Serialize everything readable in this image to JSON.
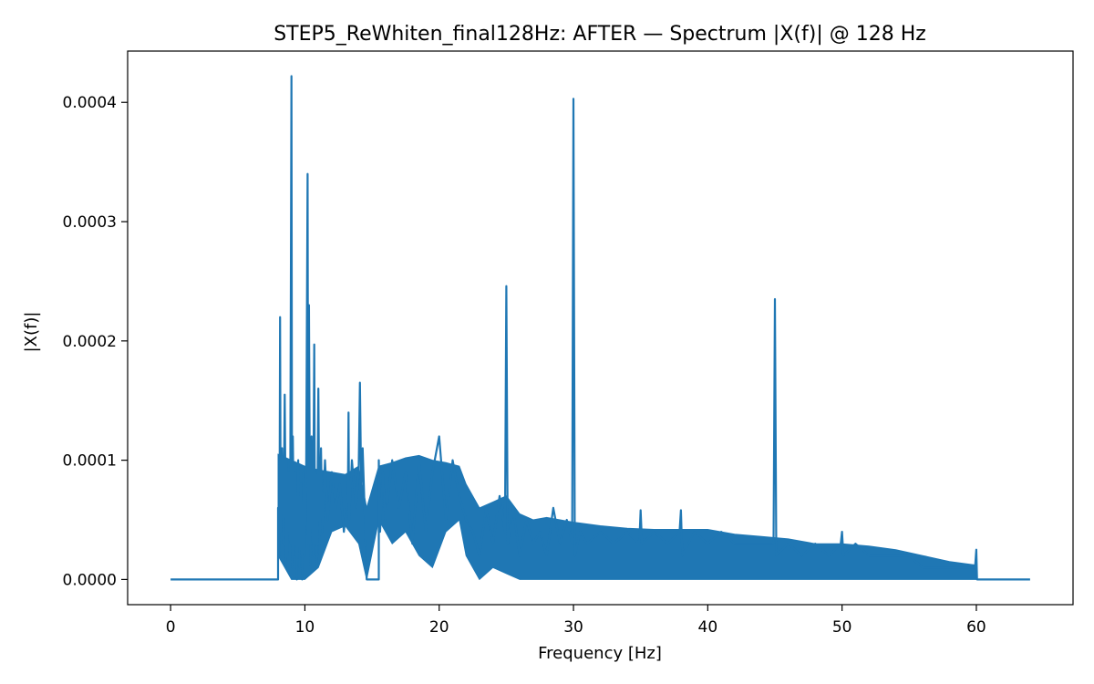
{
  "chart_data": {
    "type": "line",
    "title": "STEP5_ReWhiten_final128Hz: AFTER — Spectrum |X(f)| @ 128 Hz",
    "xlabel": "Frequency [Hz]",
    "ylabel": "|X(f)|",
    "xlim": [
      -3.2,
      67.2
    ],
    "ylim": [
      -2.11e-05,
      0.000443
    ],
    "xticks": [
      0,
      10,
      20,
      30,
      40,
      50,
      60
    ],
    "xtick_labels": [
      "0",
      "10",
      "20",
      "30",
      "40",
      "50",
      "60"
    ],
    "yticks": [
      0,
      0.0001,
      0.0002,
      0.0003,
      0.0004
    ],
    "ytick_labels": [
      "0.0000",
      "0.0001",
      "0.0002",
      "0.0003",
      "0.0004"
    ],
    "grid": false,
    "series": [
      {
        "color": "#1f77b4",
        "x": [
          0,
          8.0,
          8.0,
          8.1,
          8.15,
          8.2,
          8.3,
          8.4,
          8.5,
          8.6,
          8.65,
          8.7,
          8.8,
          8.9,
          9.0,
          9.05,
          9.1,
          9.2,
          9.3,
          9.4,
          9.5,
          9.6,
          9.7,
          9.8,
          9.9,
          10.0,
          10.1,
          10.2,
          10.25,
          10.3,
          10.4,
          10.5,
          10.6,
          10.7,
          10.75,
          10.8,
          10.9,
          11.0,
          11.1,
          11.2,
          11.3,
          11.5,
          11.7,
          12.0,
          12.3,
          12.6,
          12.9,
          13.2,
          13.25,
          13.3,
          13.5,
          13.8,
          14.0,
          14.1,
          14.2,
          14.3,
          14.5,
          14.6,
          14.7,
          15.0,
          15.4,
          15.5,
          15.5,
          15.6,
          15.8,
          16.0,
          16.5,
          17.0,
          17.5,
          18.0,
          18.5,
          19.0,
          19.5,
          20.0,
          20.5,
          21.0,
          21.5,
          22.0,
          22.5,
          23.0,
          23.5,
          24.0,
          24.5,
          24.9,
          25.0,
          25.1,
          25.5,
          26.0,
          26.5,
          27.0,
          27.5,
          28.0,
          28.5,
          29.0,
          29.5,
          29.9,
          30.0,
          30.1,
          30.5,
          31.0,
          32.0,
          33.0,
          34.0,
          34.9,
          35.0,
          35.1,
          36.0,
          37.0,
          37.9,
          38.0,
          38.1,
          39.0,
          40.0,
          41.0,
          42.0,
          43.0,
          44.0,
          44.9,
          45.0,
          45.1,
          46.0,
          47.0,
          48.0,
          49.0,
          49.9,
          50.0,
          50.1,
          51.0,
          52.0,
          53.0,
          54.0,
          55.0,
          56.0,
          57.0,
          58.0,
          59.0,
          59.9,
          60.0,
          60.05,
          64
        ],
        "y": [
          0,
          0,
          6e-05,
          2e-05,
          0.00022,
          4e-05,
          0.00011,
          3e-05,
          0.000155,
          1e-05,
          0.0001,
          2e-05,
          9e-05,
          3e-05,
          0.000422,
          1e-05,
          0.00012,
          2e-05,
          9e-05,
          0.0,
          0.0001,
          1e-05,
          8e-05,
          0.0,
          9e-05,
          2e-05,
          0.0001,
          0.00034,
          3e-05,
          0.00023,
          1e-05,
          0.00012,
          2e-05,
          0.000197,
          3e-05,
          9e-05,
          1e-05,
          0.00016,
          2e-05,
          0.00011,
          4e-05,
          0.0001,
          5e-05,
          9e-05,
          6e-05,
          8e-05,
          4e-05,
          7e-05,
          0.00014,
          5e-05,
          0.0001,
          6e-05,
          9e-05,
          0.000165,
          7e-05,
          0.00011,
          4e-05,
          0.0,
          0.0,
          0.0,
          0.0,
          0.0,
          0.0001,
          4e-05,
          9e-05,
          5e-05,
          0.0001,
          6e-05,
          9e-05,
          3e-05,
          0.0001,
          4e-05,
          9e-05,
          0.00012,
          5e-05,
          0.0001,
          7e-05,
          5e-05,
          4e-05,
          2e-05,
          6e-05,
          3e-05,
          7e-05,
          4e-05,
          0.000246,
          3e-05,
          6e-05,
          2e-05,
          5e-05,
          3e-05,
          4e-05,
          2e-05,
          6e-05,
          3e-05,
          5e-05,
          3e-05,
          0.000403,
          2e-05,
          4e-05,
          3e-05,
          4e-05,
          3e-05,
          4e-05,
          3e-05,
          5.8e-05,
          3e-05,
          4e-05,
          3e-05,
          4e-05,
          5.8e-05,
          2e-05,
          4e-05,
          3e-05,
          4e-05,
          3e-05,
          3e-05,
          3e-05,
          3e-05,
          0.000235,
          2e-05,
          3e-05,
          2e-05,
          3e-05,
          2e-05,
          3e-05,
          4e-05,
          2e-05,
          3e-05,
          2e-05,
          2e-05,
          2e-05,
          2e-05,
          1e-05,
          1e-05,
          1e-05,
          1e-05,
          1e-05,
          2.5e-05,
          0.0,
          0.0
        ],
        "fill_band": {
          "x": [
            8.0,
            9.0,
            10.0,
            11.0,
            12.0,
            13.0,
            14.0,
            14.6,
            15.5,
            16.5,
            17.5,
            18.5,
            19.5,
            20.5,
            21.5,
            22.0,
            23.0,
            24.0,
            25.0,
            26.0,
            27.0,
            28.0,
            29.0,
            30.0,
            32.0,
            34.0,
            36.0,
            38.0,
            40.0,
            42.0,
            44.0,
            46.0,
            48.0,
            50.0,
            52.0,
            54.0,
            56.0,
            58.0,
            60.0
          ],
          "upper": [
            0.000105,
            0.0001,
            9.5e-05,
            9.2e-05,
            9e-05,
            8.8e-05,
            9.5e-05,
            6e-05,
            9.5e-05,
            9.8e-05,
            0.000102,
            0.000104,
            0.0001,
            9.8e-05,
            9.5e-05,
            8e-05,
            6e-05,
            6.5e-05,
            7e-05,
            5.5e-05,
            5e-05,
            5.2e-05,
            5e-05,
            4.8e-05,
            4.5e-05,
            4.3e-05,
            4.2e-05,
            4.2e-05,
            4.2e-05,
            3.8e-05,
            3.6e-05,
            3.4e-05,
            3e-05,
            3e-05,
            2.8e-05,
            2.5e-05,
            2e-05,
            1.5e-05,
            1.2e-05
          ],
          "lower": [
            2e-05,
            0.0,
            0.0,
            1e-05,
            4e-05,
            4.5e-05,
            3e-05,
            0.0,
            5e-05,
            3e-05,
            4e-05,
            2e-05,
            1e-05,
            4e-05,
            5e-05,
            2e-05,
            0.0,
            1e-05,
            5e-06,
            0.0,
            0.0,
            0.0,
            0.0,
            0.0,
            0.0,
            0.0,
            0.0,
            0.0,
            0.0,
            0.0,
            0.0,
            0.0,
            0.0,
            0.0,
            0.0,
            0.0,
            0.0,
            0.0,
            0.0
          ]
        }
      }
    ]
  }
}
